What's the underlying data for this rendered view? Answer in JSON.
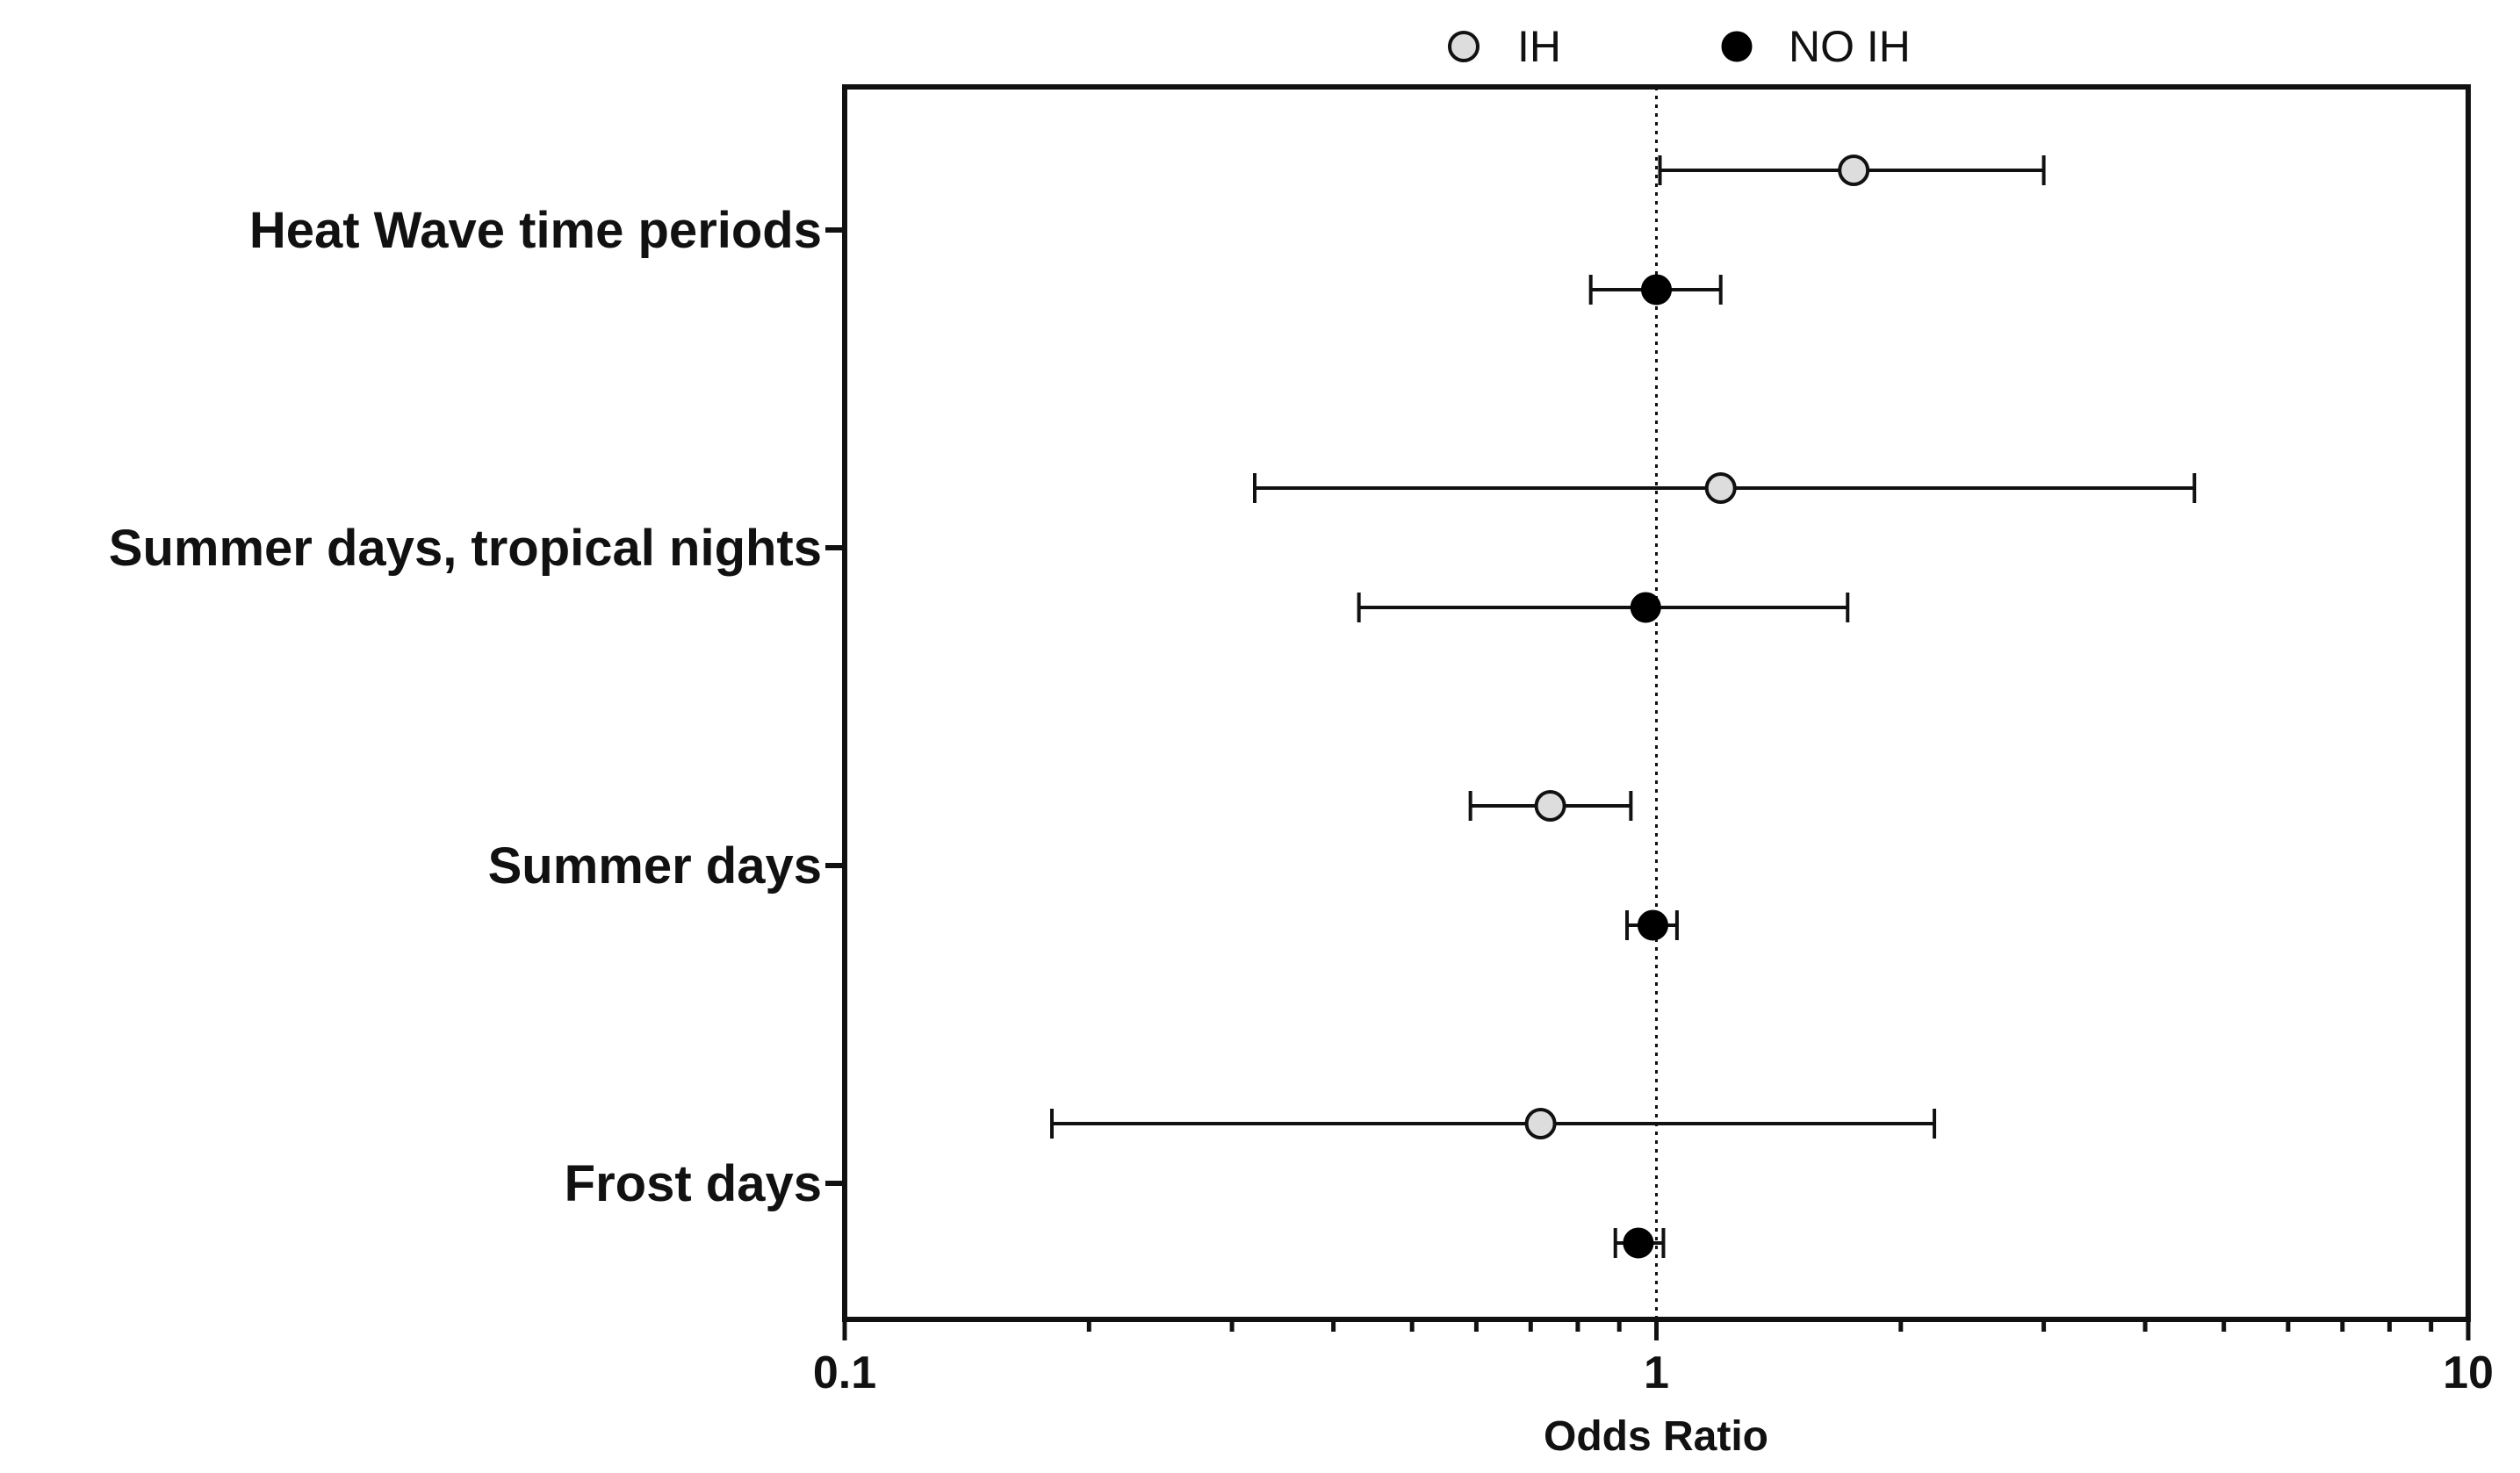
{
  "chart_data": {
    "type": "scatter",
    "subtype": "forest-plot",
    "title": "",
    "xlabel": "Odds Ratio",
    "ylabel": "",
    "x_scale": "log",
    "xlim": [
      0.1,
      10
    ],
    "x_ticks": [
      "0.1",
      "1",
      "10"
    ],
    "reference_line": 1,
    "grid": false,
    "legend_position": "top-center",
    "categories": [
      "Heat Wave time periods",
      "Summer days, tropical nights",
      "Summer days",
      "Frost days"
    ],
    "series": [
      {
        "name": "IH",
        "marker": "open-circle",
        "color": "#dddddd",
        "points": [
          {
            "category": "Heat Wave time periods",
            "or": 1.75,
            "lower": 1.01,
            "upper": 3.0
          },
          {
            "category": "Summer days, tropical nights",
            "or": 1.2,
            "lower": 0.32,
            "upper": 4.6
          },
          {
            "category": "Summer days",
            "or": 0.74,
            "lower": 0.59,
            "upper": 0.93
          },
          {
            "category": "Frost days",
            "or": 0.72,
            "lower": 0.18,
            "upper": 2.2
          }
        ]
      },
      {
        "name": "NO IH",
        "marker": "filled-circle",
        "color": "#000000",
        "points": [
          {
            "category": "Heat Wave time periods",
            "or": 1.0,
            "lower": 0.83,
            "upper": 1.2
          },
          {
            "category": "Summer days, tropical nights",
            "or": 0.97,
            "lower": 0.43,
            "upper": 1.72
          },
          {
            "category": "Summer days",
            "or": 0.99,
            "lower": 0.92,
            "upper": 1.06
          },
          {
            "category": "Frost days",
            "or": 0.95,
            "lower": 0.89,
            "upper": 1.02
          }
        ]
      }
    ]
  }
}
